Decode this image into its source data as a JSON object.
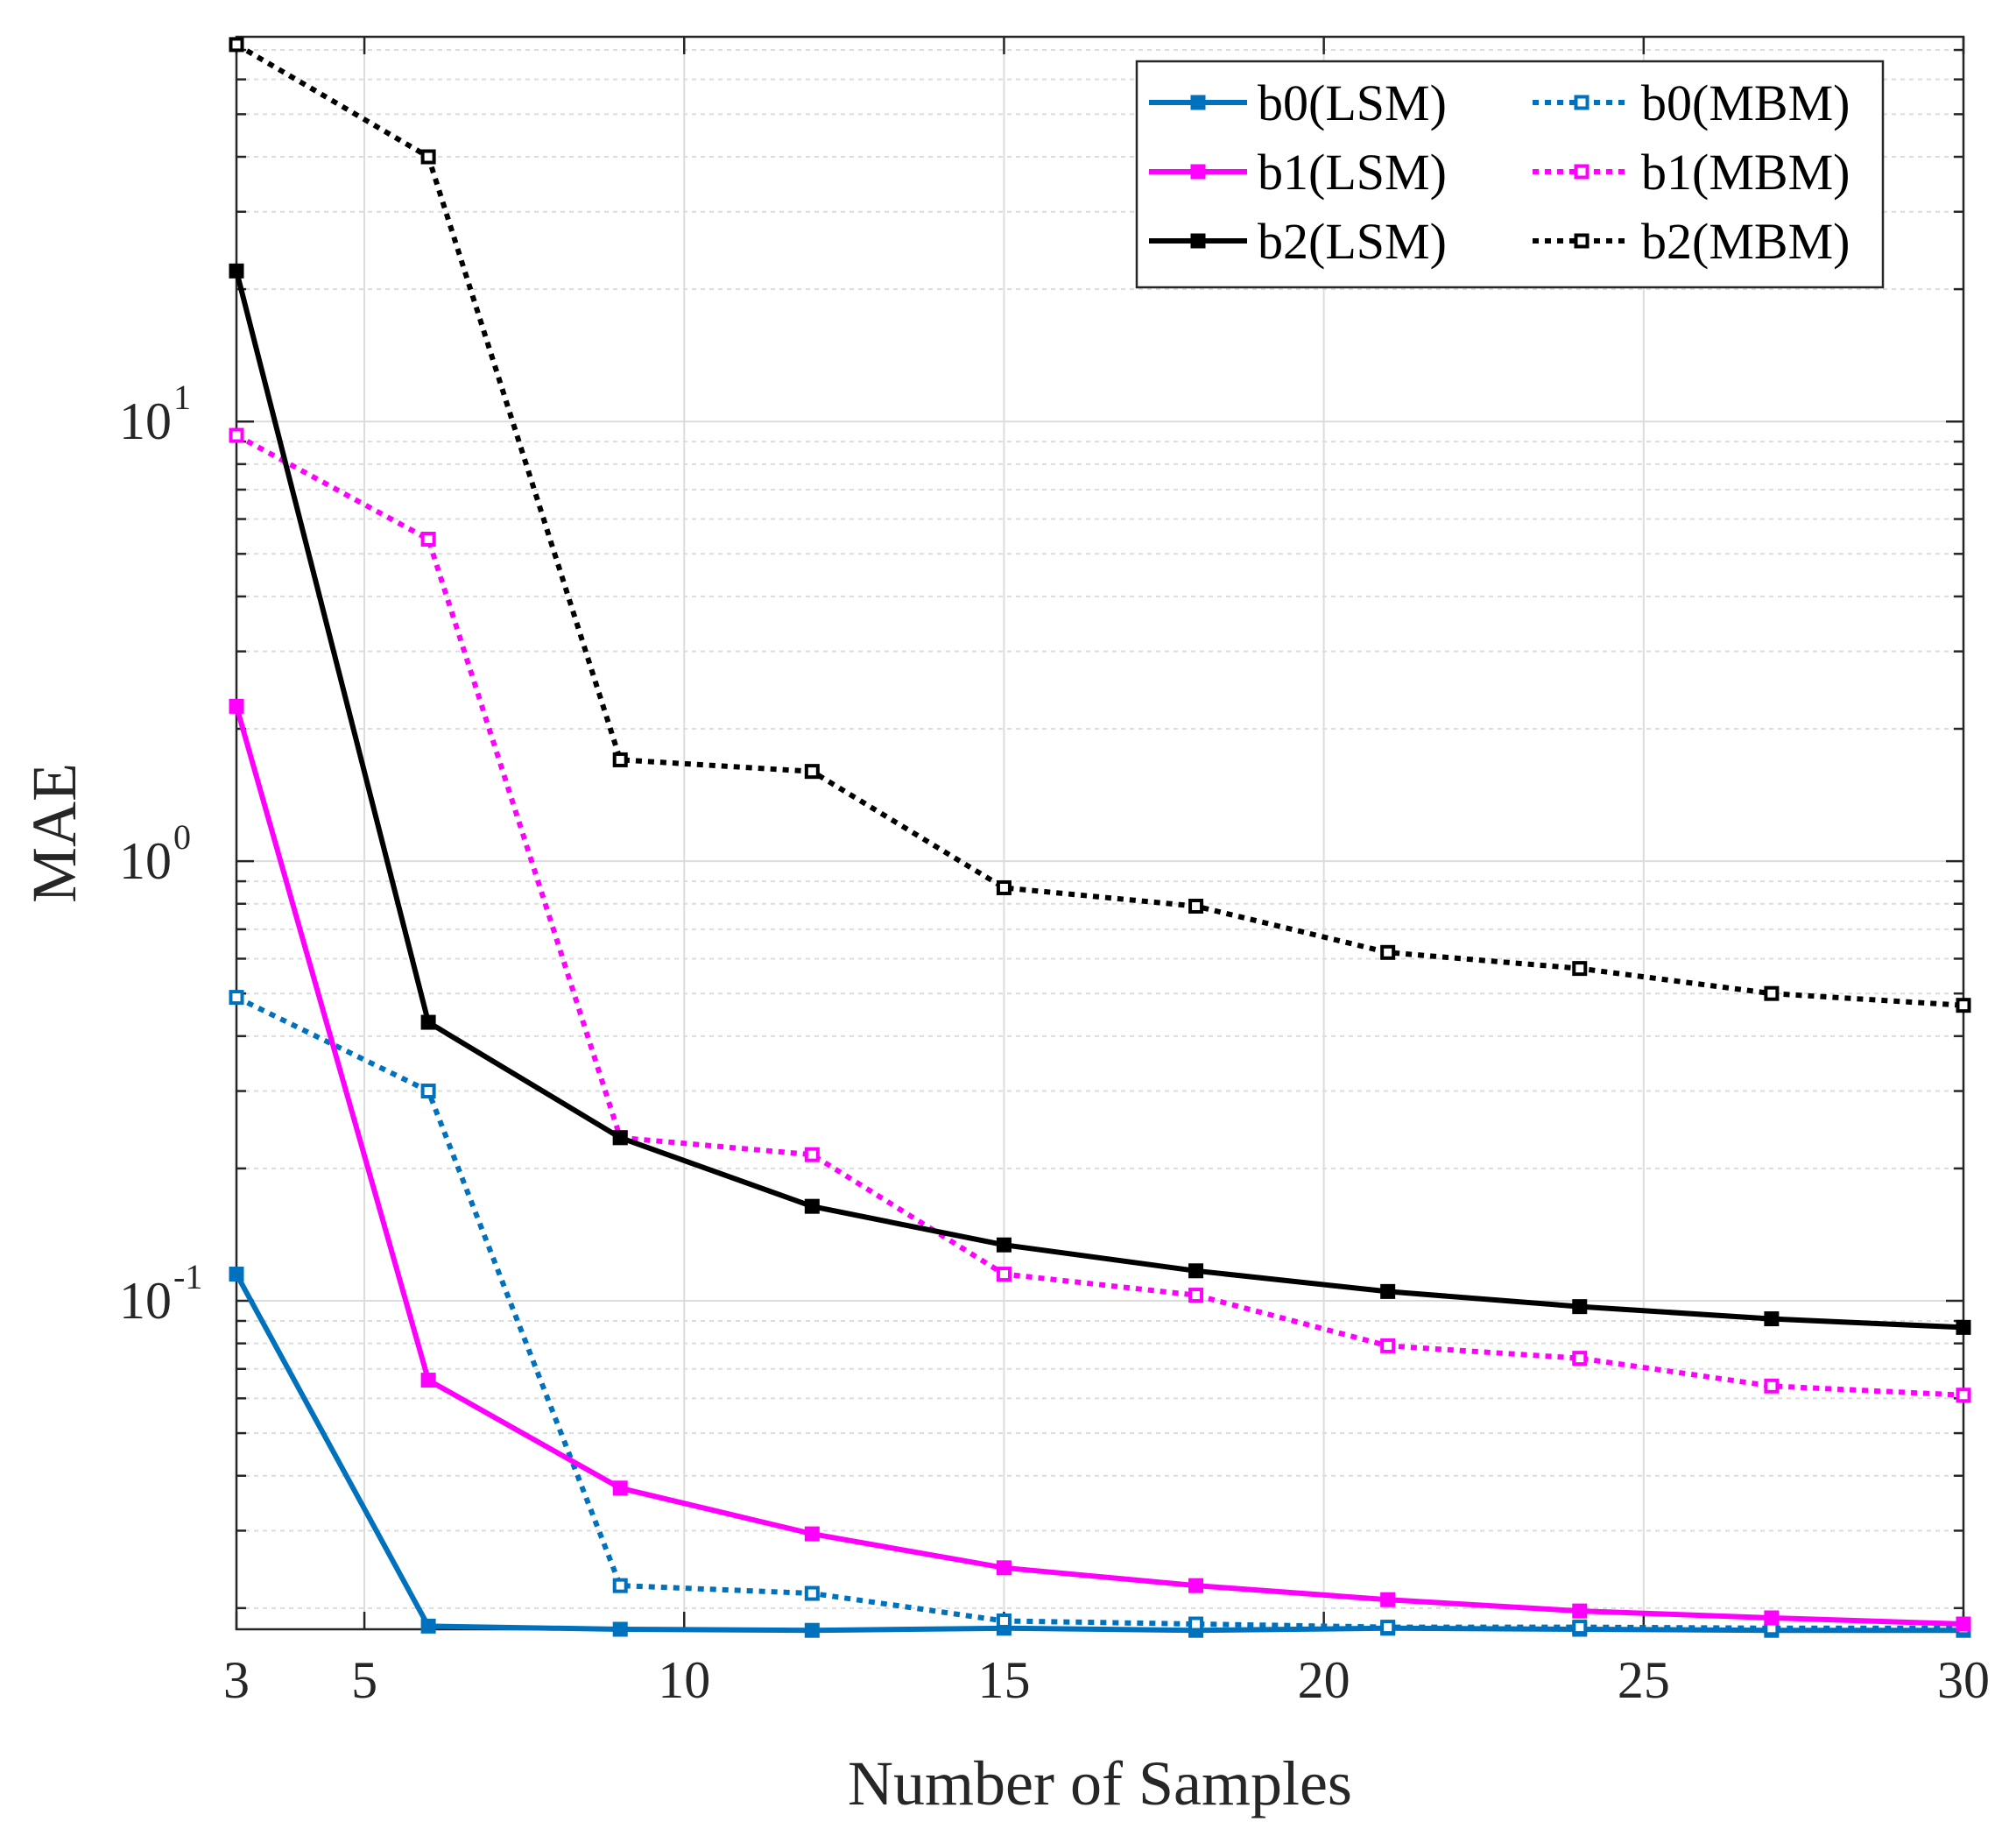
{
  "chart_data": {
    "type": "line",
    "title": "",
    "xlabel": "Number of Samples",
    "ylabel": "MAE",
    "yscale": "log",
    "xlim": [
      3,
      30
    ],
    "ylim": [
      0.0179,
      75
    ],
    "xticks": [
      3,
      5,
      10,
      15,
      20,
      25,
      30
    ],
    "yticks": [
      {
        "value": 0.1,
        "base": "10",
        "exp": "-1"
      },
      {
        "value": 1,
        "base": "10",
        "exp": "0"
      },
      {
        "value": 10,
        "base": "10",
        "exp": "1"
      }
    ],
    "grid": true,
    "legend_position": "top-right",
    "x": [
      3,
      6,
      9,
      12,
      15,
      18,
      21,
      24,
      27,
      30
    ],
    "series": [
      {
        "name": "b0(LSM)",
        "color": "#0072BD",
        "style": "solid",
        "values": [
          0.115,
          0.0182,
          0.0179,
          0.0178,
          0.018,
          0.0178,
          0.018,
          0.0179,
          0.0178,
          0.0178
        ]
      },
      {
        "name": "b0(MBM)",
        "color": "#0072BD",
        "style": "dotted",
        "values": [
          0.49,
          0.3,
          0.0225,
          0.0216,
          0.0187,
          0.0184,
          0.0181,
          0.0181,
          0.018,
          0.018
        ]
      },
      {
        "name": "b1(LSM)",
        "color": "#FF00FF",
        "style": "solid",
        "values": [
          2.25,
          0.066,
          0.0375,
          0.0295,
          0.0247,
          0.0225,
          0.0209,
          0.0197,
          0.019,
          0.0184
        ]
      },
      {
        "name": "b1(MBM)",
        "color": "#FF00FF",
        "style": "dotted",
        "values": [
          9.3,
          5.4,
          0.235,
          0.215,
          0.115,
          0.103,
          0.079,
          0.074,
          0.064,
          0.061
        ]
      },
      {
        "name": "b2(LSM)",
        "color": "#000000",
        "style": "solid",
        "values": [
          22,
          0.43,
          0.235,
          0.164,
          0.134,
          0.117,
          0.105,
          0.097,
          0.091,
          0.087
        ]
      },
      {
        "name": "b2(MBM)",
        "color": "#000000",
        "style": "dotted",
        "values": [
          72,
          40,
          1.7,
          1.6,
          0.87,
          0.79,
          0.62,
          0.57,
          0.5,
          0.47
        ]
      }
    ]
  }
}
